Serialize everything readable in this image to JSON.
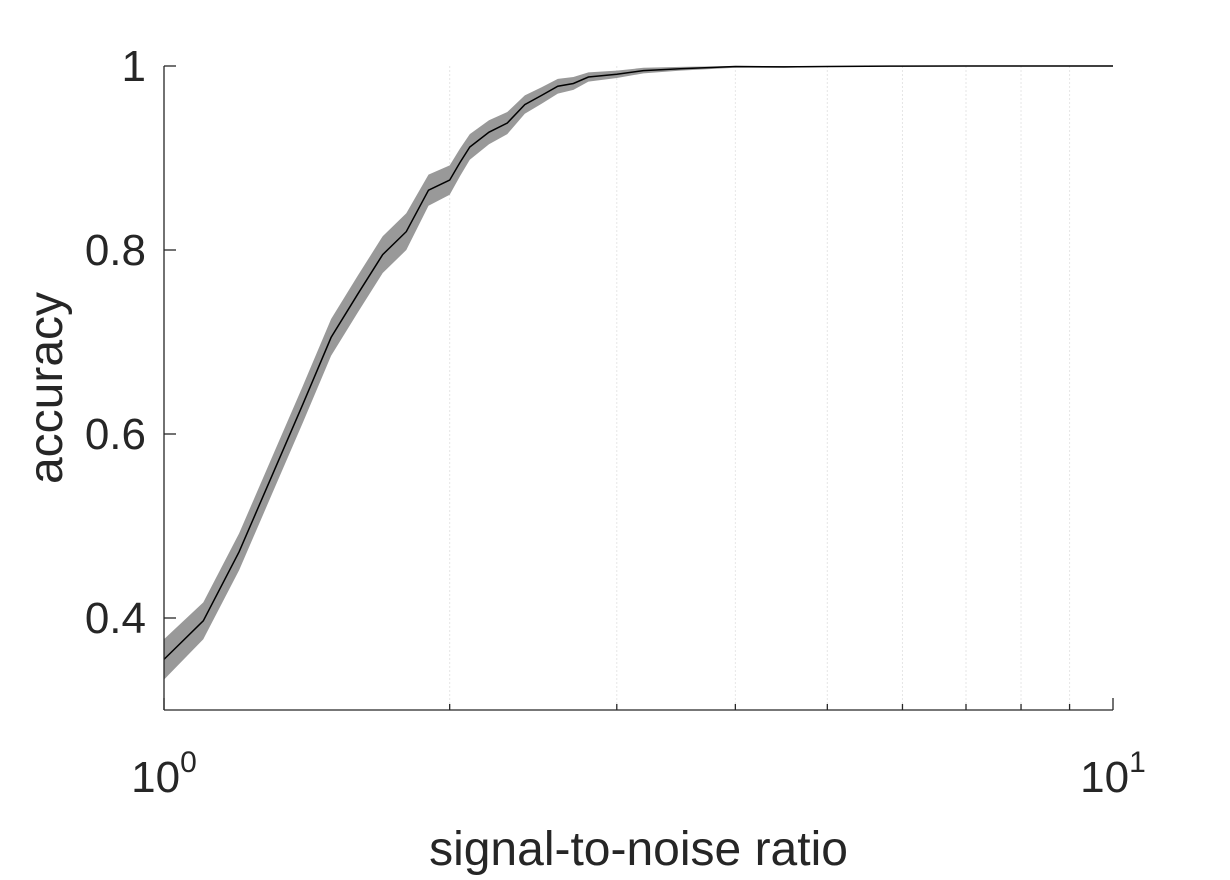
{
  "chart_data": {
    "type": "line",
    "title": "",
    "xlabel": "signal-to-noise ratio",
    "ylabel": "accuracy",
    "xscale": "log",
    "xlim": [
      1,
      10
    ],
    "ylim": [
      0.3,
      1.0
    ],
    "grid": "vertical minor gridlines at 2–9 (log scale)",
    "x_tick_labels": [
      {
        "value": 1,
        "base": "10",
        "exp": "0"
      },
      {
        "value": 10,
        "base": "10",
        "exp": "1"
      }
    ],
    "y_ticks": [
      0.4,
      0.6,
      0.8,
      1.0
    ],
    "y_tick_labels": [
      "0.4",
      "0.6",
      "0.8",
      "1"
    ],
    "series": [
      {
        "x": [
          1.0,
          1.1,
          1.2,
          1.3,
          1.4,
          1.5,
          1.6,
          1.7,
          1.8,
          1.9,
          2.0,
          2.05,
          2.1,
          2.2,
          2.3,
          2.4,
          2.5,
          2.6,
          2.7,
          2.8,
          3.0,
          3.2,
          3.5,
          4.0,
          4.5,
          5.0,
          5.5,
          6.0,
          7.0,
          8.0,
          10.0
        ],
        "y": [
          0.355,
          0.397,
          0.472,
          0.555,
          0.632,
          0.705,
          0.752,
          0.795,
          0.82,
          0.865,
          0.876,
          0.895,
          0.912,
          0.928,
          0.938,
          0.958,
          0.968,
          0.978,
          0.981,
          0.988,
          0.991,
          0.995,
          0.997,
          0.9995,
          0.999,
          0.9995,
          0.9998,
          0.9999,
          1.0,
          1.0,
          1.0
        ],
        "lower": [
          0.333,
          0.377,
          0.452,
          0.535,
          0.612,
          0.685,
          0.732,
          0.775,
          0.8,
          0.848,
          0.86,
          0.88,
          0.898,
          0.915,
          0.926,
          0.948,
          0.959,
          0.97,
          0.974,
          0.983,
          0.987,
          0.992,
          0.995,
          0.998,
          0.998,
          0.999,
          0.9995,
          0.9997,
          0.9999,
          0.9999,
          0.9999
        ],
        "upper": [
          0.377,
          0.417,
          0.492,
          0.575,
          0.652,
          0.725,
          0.772,
          0.815,
          0.84,
          0.882,
          0.892,
          0.91,
          0.926,
          0.941,
          0.95,
          0.968,
          0.977,
          0.986,
          0.988,
          0.993,
          0.995,
          0.998,
          0.999,
          1.0,
          1.0,
          1.0,
          1.0,
          1.0,
          1.0,
          1.0,
          1.0
        ],
        "line_color": "#000000",
        "band_color": "#999999"
      }
    ]
  }
}
